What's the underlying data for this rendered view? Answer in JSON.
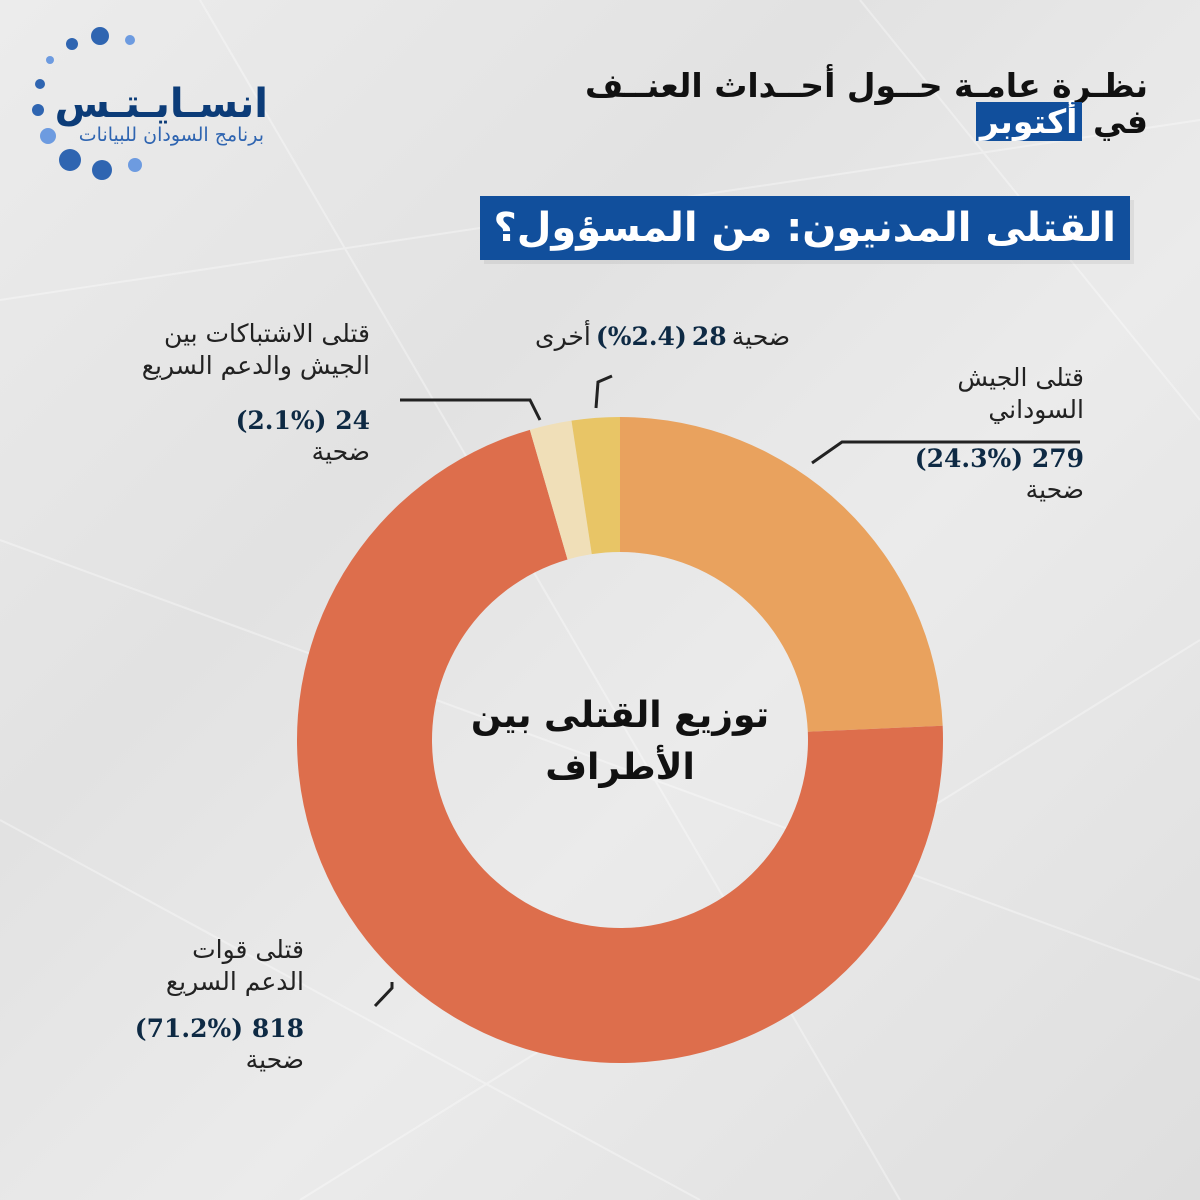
{
  "logo": {
    "title": "انسـايـتـس",
    "subtitle": "برنامج السودان للبيانات",
    "dot_color": "#2f65b1"
  },
  "header": {
    "line1": "نظـرة عامـة حــول أحــداث العنــف",
    "line2_prefix": "في",
    "line2_highlight": "أكتوبر",
    "banner": "القتلى المدنيون: من المسؤول؟"
  },
  "chart_data": {
    "type": "pie",
    "title": "القتلى المدنيون: من المسؤول؟",
    "center_label_line1": "توزيع القتلى بين",
    "center_label_line2": "الأطراف",
    "unit": "ضحية",
    "slices": [
      {
        "name_line1": "قتلى الجيش",
        "name_line2": "السوداني",
        "count": 279,
        "percent_label": "(24.3%)",
        "percent": 24.3,
        "color": "#e9a25e"
      },
      {
        "name_line1": "قتلى قوات",
        "name_line2": "الدعم السريع",
        "count": 818,
        "percent_label": "(71.2%)",
        "percent": 71.2,
        "color": "#dd6e4c"
      },
      {
        "name_line1": "قتلى الاشتباكات بين",
        "name_line2": "الجيش والدعم السريع",
        "count": 24,
        "percent_label": "(2.1%)",
        "percent": 2.1,
        "color": "#f0dfb8"
      },
      {
        "name_line1": "أخرى",
        "name_line2": "",
        "count": 28,
        "percent_label": "(2.4%)",
        "percent": 2.4,
        "color": "#e8c566"
      }
    ]
  }
}
